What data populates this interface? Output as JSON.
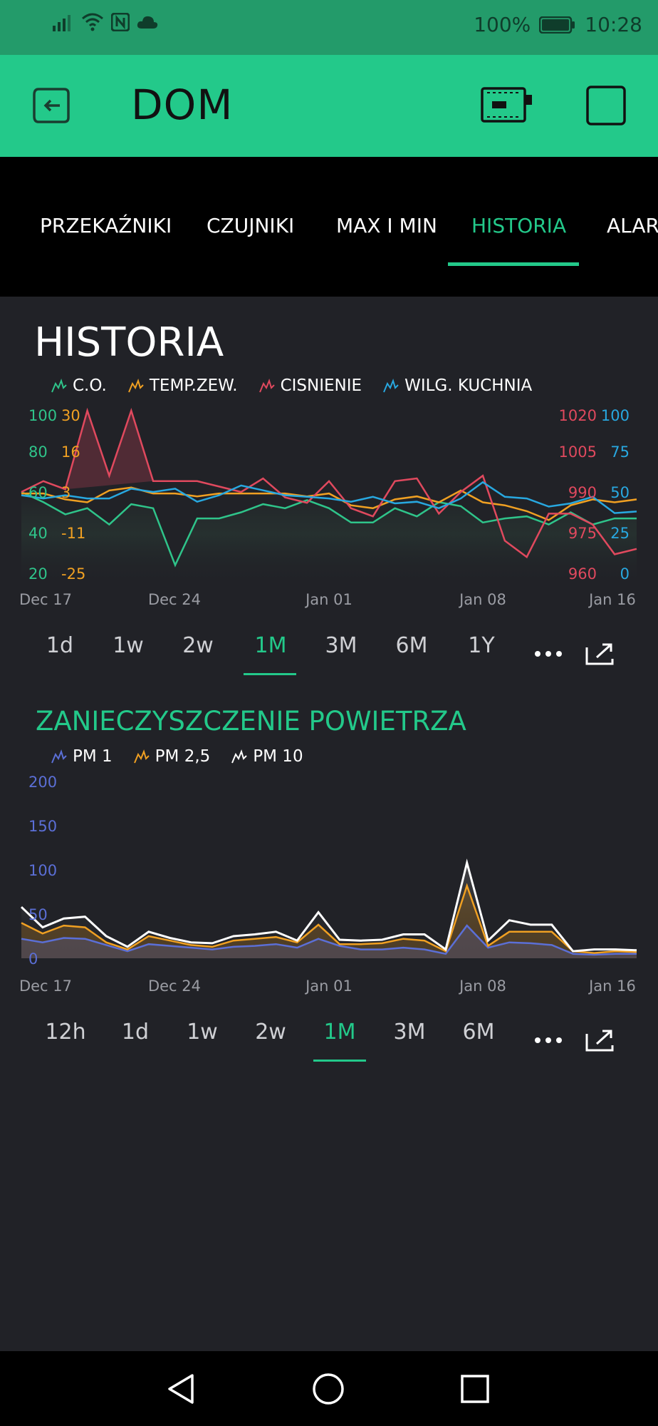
{
  "status": {
    "battery": "100%",
    "time": "10:28"
  },
  "appbar": {
    "title": "DOM"
  },
  "tabs": [
    {
      "label": "PRZEKAŹNIKI",
      "active": false
    },
    {
      "label": "CZUJNIKI",
      "active": false
    },
    {
      "label": "MAX I MIN",
      "active": false
    },
    {
      "label": "HISTORIA",
      "active": true
    },
    {
      "label": "ALARMY",
      "active": false
    }
  ],
  "historia": {
    "title": "HISTORIA",
    "legend": [
      "C.O.",
      "TEMP.ZEW.",
      "CISNIENIE",
      "WILG. KUCHNIA"
    ],
    "ranges": [
      "1d",
      "1w",
      "2w",
      "1M",
      "3M",
      "6M",
      "1Y"
    ],
    "active_range": "1M"
  },
  "pm": {
    "title": "ZANIECZYSZCZENIE POWIETRZA",
    "legend": [
      "PM 1",
      "PM 2,5",
      "PM 10"
    ],
    "ranges": [
      "12h",
      "1d",
      "1w",
      "2w",
      "1M",
      "3M",
      "6M"
    ],
    "active_range": "1M"
  },
  "colors": {
    "accent": "#23c98a",
    "co": "#2fc48a",
    "temp": "#f0a022",
    "cisnienie": "#e0495e",
    "wilg": "#28a8e0",
    "pm1": "#5b6fd6",
    "pm25": "#f0a022",
    "pm10": "#ffffff"
  },
  "chart_data": [
    {
      "type": "line",
      "title": "HISTORIA",
      "x_ticks": [
        "Dec 17",
        "Dec 24",
        "Jan 01",
        "Jan 08",
        "Jan 16"
      ],
      "axes": {
        "co": {
          "ticks": [
            "20",
            "40",
            "60",
            "80",
            "100"
          ],
          "ylim": [
            20,
            100
          ]
        },
        "temp": {
          "ticks": [
            "-25",
            "-11",
            "3",
            "16",
            "30"
          ],
          "ylim": [
            -25,
            30
          ]
        },
        "cisnienie": {
          "ticks": [
            "960",
            "975",
            "990",
            "1005",
            "1020"
          ],
          "ylim": [
            960,
            1020
          ]
        },
        "wilg": {
          "ticks": [
            "0",
            "25",
            "50",
            "75",
            "100"
          ],
          "ylim": [
            0,
            100
          ]
        }
      },
      "series": [
        {
          "name": "C.O.",
          "axis": "co",
          "values": [
            60,
            55,
            49,
            52,
            44,
            54,
            52,
            24,
            47,
            47,
            50,
            54,
            52,
            56,
            52,
            45,
            45,
            52,
            48,
            55,
            53,
            45,
            47,
            48,
            44,
            50,
            44,
            47,
            47
          ]
        },
        {
          "name": "TEMP.ZEW.",
          "axis": "temp",
          "values": [
            2,
            2,
            0,
            -1,
            3,
            4,
            2,
            2,
            1,
            2,
            2,
            2,
            2,
            1,
            2,
            -2,
            -3,
            0,
            1,
            -1,
            3,
            -1,
            -2,
            -4,
            -7,
            -2,
            0,
            -1,
            0
          ]
        },
        {
          "name": "CISNIENIE",
          "axis": "cisnienie",
          "values": [
            990,
            994,
            991,
            1020,
            996,
            1020,
            994,
            994,
            994,
            992,
            990,
            995,
            988,
            986,
            994,
            984,
            981,
            994,
            995,
            982,
            990,
            996,
            972,
            966,
            982,
            982,
            978,
            967,
            969
          ]
        },
        {
          "name": "WILG. KUCHNIA",
          "axis": "wilg",
          "values": [
            48,
            46,
            48,
            46,
            46,
            52,
            50,
            52,
            44,
            48,
            54,
            51,
            48,
            47,
            46,
            44,
            47,
            43,
            44,
            40,
            46,
            56,
            47,
            46,
            41,
            43,
            47,
            37,
            38
          ]
        }
      ]
    },
    {
      "type": "line",
      "title": "ZANIECZYSZCZENIE POWIETRZA",
      "x_ticks": [
        "Dec 17",
        "Dec 24",
        "Jan 01",
        "Jan 08",
        "Jan 16"
      ],
      "y_ticks": [
        "0",
        "50",
        "100",
        "150",
        "200"
      ],
      "ylim": [
        0,
        200
      ],
      "series": [
        {
          "name": "PM 1",
          "values": [
            22,
            18,
            23,
            22,
            15,
            8,
            16,
            14,
            12,
            10,
            13,
            14,
            16,
            12,
            22,
            14,
            10,
            10,
            12,
            10,
            5,
            37,
            12,
            18,
            17,
            15,
            5,
            4,
            5,
            5
          ]
        },
        {
          "name": "PM 2,5",
          "values": [
            40,
            28,
            37,
            35,
            18,
            10,
            25,
            20,
            15,
            13,
            20,
            22,
            24,
            18,
            38,
            16,
            16,
            17,
            22,
            20,
            8,
            82,
            14,
            30,
            30,
            30,
            8,
            6,
            8,
            7
          ]
        },
        {
          "name": "PM 10",
          "values": [
            58,
            35,
            45,
            47,
            25,
            13,
            30,
            23,
            18,
            17,
            25,
            27,
            30,
            20,
            52,
            21,
            20,
            21,
            27,
            27,
            10,
            108,
            20,
            43,
            38,
            38,
            8,
            10,
            10,
            9
          ]
        }
      ]
    }
  ]
}
